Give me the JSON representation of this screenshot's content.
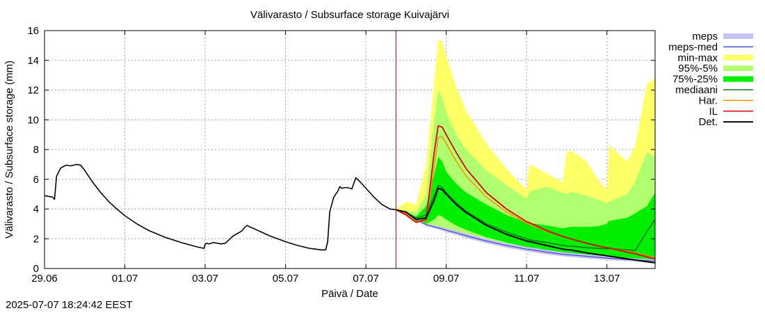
{
  "chart_data": {
    "type": "line",
    "title": "Välivarasto / Subsurface storage  Kuivajärvi",
    "xlabel": "Päivä / Date",
    "ylabel": "Välivarasto / Subsurface storage (mm)",
    "ylim": [
      0,
      16
    ],
    "xlim": [
      0,
      15.2
    ],
    "x_ticks": [
      {
        "x": 0,
        "label": "29.06"
      },
      {
        "x": 2,
        "label": "01.07"
      },
      {
        "x": 4,
        "label": "03.07"
      },
      {
        "x": 6,
        "label": "05.07"
      },
      {
        "x": 8,
        "label": "07.07"
      },
      {
        "x": 10,
        "label": "09.07"
      },
      {
        "x": 12,
        "label": "11.07"
      },
      {
        "x": 14,
        "label": "13.07"
      }
    ],
    "y_ticks": [
      0,
      2,
      4,
      6,
      8,
      10,
      12,
      14,
      16
    ],
    "forecast_start_x": 8.75,
    "grid": true,
    "legend_position": "right",
    "legend": [
      {
        "key": "meps",
        "label": "meps",
        "kind": "band",
        "color": "#c4c4f4"
      },
      {
        "key": "meps_med",
        "label": "meps-med",
        "kind": "line",
        "color": "#4646c8"
      },
      {
        "key": "minmax",
        "label": "min-max",
        "kind": "band",
        "color": "#ffff66"
      },
      {
        "key": "p95_5",
        "label": "95%-5%",
        "kind": "band",
        "color": "#b0ff6e"
      },
      {
        "key": "p75_25",
        "label": "75%-25%",
        "kind": "band",
        "color": "#00ee00"
      },
      {
        "key": "median",
        "label": "mediaani",
        "kind": "line",
        "color": "#137313"
      },
      {
        "key": "har",
        "label": "Har.",
        "kind": "line",
        "color": "#ff8c00"
      },
      {
        "key": "il",
        "label": "IL",
        "kind": "line",
        "color": "#dd0000"
      },
      {
        "key": "det",
        "label": "Det.",
        "kind": "line",
        "color": "#000000"
      }
    ],
    "colors": {
      "vline": "#cc0000",
      "grid": "#a0a0a0"
    },
    "observed": {
      "x": [
        0,
        0.2,
        0.25,
        0.3,
        0.4,
        0.5,
        0.55,
        0.65,
        0.8,
        0.9,
        1.0,
        1.1,
        1.2,
        1.4,
        1.6,
        1.8,
        2.0,
        2.3,
        2.6,
        3.0,
        3.4,
        3.8,
        3.97,
        4.0,
        4.05,
        4.1,
        4.2,
        4.3,
        4.4,
        4.5,
        4.7,
        4.9,
        5.0,
        5.05,
        5.1,
        5.2,
        5.4,
        5.6,
        5.8,
        6.0,
        6.3,
        6.6,
        6.9,
        7.0,
        7.05,
        7.1,
        7.2,
        7.3,
        7.35,
        7.4,
        7.5,
        7.6,
        7.65,
        7.75,
        7.85,
        8.0,
        8.2,
        8.4,
        8.6,
        8.75
      ],
      "y": [
        4.9,
        4.8,
        4.65,
        6.2,
        6.75,
        6.9,
        6.95,
        6.9,
        7.0,
        6.95,
        6.6,
        6.2,
        5.8,
        5.1,
        4.5,
        4.0,
        3.55,
        3.0,
        2.55,
        2.1,
        1.75,
        1.45,
        1.35,
        1.65,
        1.7,
        1.65,
        1.75,
        1.7,
        1.65,
        1.7,
        2.2,
        2.5,
        2.8,
        2.9,
        2.8,
        2.7,
        2.45,
        2.2,
        2.0,
        1.8,
        1.55,
        1.35,
        1.25,
        1.25,
        1.8,
        3.8,
        4.8,
        5.2,
        5.5,
        5.4,
        5.45,
        5.4,
        5.35,
        6.1,
        5.85,
        5.4,
        4.8,
        4.3,
        4.0,
        3.95
      ]
    },
    "forecast": {
      "x": [
        8.75,
        9.0,
        9.25,
        9.5,
        9.7,
        9.8,
        9.9,
        10.0,
        10.25,
        10.5,
        11.0,
        11.5,
        12.0,
        12.05,
        12.1,
        12.5,
        12.9,
        13.0,
        13.1,
        13.5,
        13.8,
        14.0,
        14.05,
        14.5,
        14.7,
        15.0,
        15.2
      ],
      "meps_hi": [
        3.95,
        3.8,
        3.4,
        3.0,
        2.9,
        2.85,
        2.8,
        2.7,
        2.55,
        2.35,
        2.0,
        1.7,
        1.45,
        1.43,
        1.42,
        1.25,
        1.1,
        1.07,
        1.05,
        0.95,
        0.87,
        0.82,
        0.81,
        0.72,
        0.68,
        0.63,
        0.6
      ],
      "meps_lo": [
        3.95,
        3.7,
        3.25,
        2.85,
        2.7,
        2.62,
        2.55,
        2.45,
        2.25,
        2.05,
        1.7,
        1.4,
        1.15,
        1.13,
        1.12,
        0.95,
        0.82,
        0.79,
        0.77,
        0.68,
        0.62,
        0.58,
        0.57,
        0.5,
        0.47,
        0.43,
        0.41
      ],
      "minmax_hi": [
        3.95,
        4.5,
        4.3,
        7.0,
        12.5,
        15.4,
        15.3,
        14.3,
        12.2,
        10.6,
        8.4,
        6.7,
        5.3,
        6.7,
        7.0,
        6.4,
        5.8,
        7.8,
        7.95,
        7.2,
        5.9,
        5.3,
        8.3,
        7.2,
        8.2,
        12.4,
        12.8
      ],
      "minmax_lo": [
        3.95,
        3.7,
        3.25,
        2.85,
        2.7,
        2.62,
        2.55,
        2.45,
        2.25,
        2.05,
        1.7,
        1.4,
        1.15,
        1.13,
        1.12,
        0.95,
        0.82,
        0.79,
        0.77,
        0.68,
        0.62,
        0.58,
        0.57,
        0.5,
        0.47,
        0.43,
        0.41
      ],
      "p95_hi": [
        3.95,
        3.9,
        3.8,
        5.0,
        10.0,
        12.0,
        11.5,
        10.5,
        9.0,
        8.0,
        6.6,
        5.6,
        4.7,
        5.0,
        5.2,
        5.5,
        5.1,
        5.0,
        5.15,
        4.9,
        4.6,
        4.4,
        4.5,
        5.0,
        5.8,
        7.8,
        7.5
      ],
      "p95_lo": [
        3.95,
        3.7,
        3.25,
        2.9,
        2.75,
        2.68,
        2.6,
        2.5,
        2.3,
        2.1,
        1.75,
        1.45,
        1.2,
        1.18,
        1.16,
        1.0,
        0.87,
        0.84,
        0.82,
        0.72,
        0.66,
        0.62,
        0.61,
        0.53,
        0.5,
        0.46,
        0.44
      ],
      "p75_hi": [
        3.95,
        3.8,
        3.5,
        4.2,
        6.3,
        7.5,
        7.2,
        6.5,
        5.7,
        5.1,
        4.3,
        3.6,
        3.1,
        3.1,
        3.05,
        2.9,
        2.7,
        2.75,
        2.8,
        2.8,
        2.85,
        3.0,
        3.2,
        3.4,
        3.7,
        4.2,
        5.1
      ],
      "p75_lo": [
        3.95,
        3.6,
        3.2,
        3.0,
        3.3,
        3.6,
        3.5,
        3.3,
        2.9,
        2.6,
        2.1,
        1.75,
        1.45,
        1.42,
        1.4,
        1.2,
        1.05,
        1.0,
        0.98,
        0.88,
        0.82,
        0.78,
        0.76,
        0.68,
        0.62,
        0.55,
        0.6
      ],
      "median": [
        3.95,
        3.75,
        3.4,
        3.6,
        4.9,
        5.6,
        5.45,
        5.1,
        4.4,
        3.85,
        3.0,
        2.45,
        2.0,
        1.95,
        1.92,
        1.75,
        1.55,
        1.52,
        1.5,
        1.4,
        1.35,
        1.32,
        1.35,
        1.25,
        1.2,
        2.5,
        3.3
      ],
      "har": [
        3.95,
        3.7,
        3.15,
        3.2,
        6.8,
        8.8,
        8.85,
        8.4,
        7.2,
        6.2,
        4.8,
        3.8,
        3.05,
        3.0,
        2.95,
        2.5,
        2.15,
        2.08,
        2.0,
        1.7,
        1.5,
        1.4,
        1.38,
        1.15,
        1.05,
        0.85,
        0.72
      ],
      "il": [
        3.95,
        3.6,
        3.1,
        3.3,
        7.8,
        9.6,
        9.5,
        9.0,
        7.8,
        6.7,
        5.1,
        4.0,
        3.15,
        3.1,
        3.05,
        2.55,
        2.15,
        2.08,
        2.0,
        1.7,
        1.5,
        1.4,
        1.38,
        1.1,
        1.0,
        0.78,
        0.65
      ],
      "meps_med": [
        3.95,
        3.75,
        3.3,
        2.95,
        2.8,
        2.73,
        2.67,
        2.57,
        2.4,
        2.2,
        1.85,
        1.55,
        1.3,
        1.28,
        1.27,
        1.1,
        0.96,
        0.93,
        0.91,
        0.82,
        0.75,
        0.7,
        0.69,
        0.61,
        0.57,
        0.53,
        0.5
      ],
      "det": [
        3.95,
        3.8,
        3.3,
        3.4,
        4.6,
        5.4,
        5.3,
        5.0,
        4.3,
        3.75,
        2.9,
        2.3,
        1.85,
        1.82,
        1.8,
        1.55,
        1.3,
        1.27,
        1.25,
        1.05,
        0.93,
        0.85,
        0.83,
        0.65,
        0.57,
        0.45,
        0.38
      ]
    }
  },
  "timestamp": "2025-07-07 18:24:42 EEST"
}
